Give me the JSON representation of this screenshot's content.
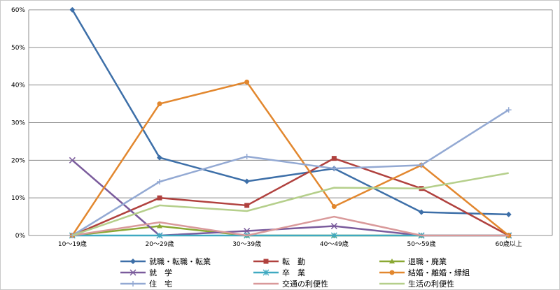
{
  "chart_data": {
    "type": "line",
    "title": "",
    "xlabel": "",
    "ylabel": "",
    "categories": [
      "10～19歳",
      "20～29歳",
      "30～39歳",
      "40～49歳",
      "50～59歳",
      "60歳以上"
    ],
    "y_ticks": [
      "0%",
      "10%",
      "20%",
      "30%",
      "40%",
      "50%",
      "60%"
    ],
    "ylim": [
      0,
      60
    ],
    "y_unit": "%",
    "grid": true,
    "legend_position": "bottom",
    "series": [
      {
        "name": "就職・転職・転業",
        "color": "#3d6fa8",
        "marker": "diamond",
        "values": [
          60.0,
          20.7,
          14.4,
          17.8,
          6.2,
          5.6
        ]
      },
      {
        "name": "転　勤",
        "color": "#b0413e",
        "marker": "square",
        "values": [
          0.0,
          10.0,
          8.0,
          20.5,
          12.5,
          0.0
        ]
      },
      {
        "name": "退職・廃業",
        "color": "#8aa833",
        "marker": "triangle",
        "values": [
          0.0,
          2.5,
          0.0,
          0.0,
          0.0,
          0.0
        ]
      },
      {
        "name": "就　学",
        "color": "#7a5b9c",
        "marker": "x",
        "values": [
          20.0,
          0.0,
          1.2,
          2.5,
          0.0,
          0.0
        ]
      },
      {
        "name": "卒　業",
        "color": "#3fa9c1",
        "marker": "star",
        "values": [
          0.0,
          0.0,
          0.0,
          0.0,
          0.0,
          0.0
        ]
      },
      {
        "name": "結婚・離婚・縁組",
        "color": "#e2872e",
        "marker": "circle",
        "values": [
          0.0,
          35.0,
          40.8,
          7.7,
          18.7,
          0.0
        ]
      },
      {
        "name": "住　宅",
        "color": "#93a9d3",
        "marker": "plus",
        "values": [
          0.0,
          14.3,
          21.0,
          17.8,
          18.7,
          33.4
        ]
      },
      {
        "name": "交通の利便性",
        "color": "#d9999a",
        "marker": "none",
        "values": [
          0.0,
          3.5,
          0.0,
          5.0,
          0.0,
          0.0
        ]
      },
      {
        "name": "生活の利便性",
        "color": "#b5cf8b",
        "marker": "none",
        "values": [
          0.0,
          8.0,
          6.5,
          12.7,
          12.5,
          16.6
        ]
      }
    ]
  }
}
